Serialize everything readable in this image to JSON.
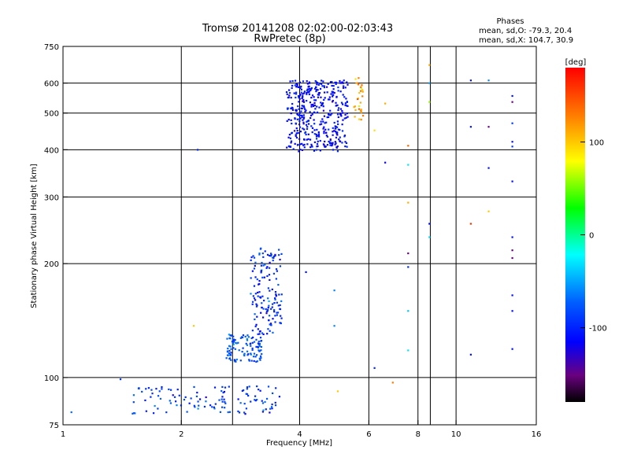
{
  "chart_data": {
    "type": "scatter",
    "title": "Tromsø 20141208 02:02:00-02:03:43",
    "subtitle": "RwPretec (8p)",
    "xlabel": "Frequency [MHz]",
    "ylabel": "Stationary phase Virtual Height [km]",
    "x_scale": "log",
    "y_scale": "log",
    "xlim": [
      1,
      16
    ],
    "ylim": [
      75,
      750
    ],
    "x_ticks": [
      1,
      2,
      4,
      6,
      8,
      10,
      16
    ],
    "y_ticks": [
      75,
      100,
      200,
      300,
      400,
      500,
      600,
      750
    ],
    "grid": true,
    "legend": {
      "title": "Phases",
      "lines": [
        "mean, sd,O: -79.3, 20.4",
        "mean, sd,X: 104.7, 30.9"
      ],
      "placement": "top-right"
    },
    "colorbar": {
      "label": "[deg]",
      "range": [
        -180,
        180
      ],
      "ticks": [
        100,
        0,
        -100
      ]
    },
    "clusters": [
      {
        "name": "",
        "x_range": [
          1.5,
          3.6
        ],
        "y_range": [
          80,
          95
        ],
        "count": 120,
        "phase_mean": -90,
        "phase_sd": 25
      },
      {
        "name": "",
        "x_range": [
          2.6,
          3.2
        ],
        "y_range": [
          110,
          130
        ],
        "count": 110,
        "phase_mean": -80,
        "phase_sd": 20
      },
      {
        "name": "",
        "x_range": [
          3.0,
          3.6
        ],
        "y_range": [
          130,
          220
        ],
        "count": 150,
        "phase_mean": -95,
        "phase_sd": 25
      },
      {
        "name": "",
        "x_range": [
          3.7,
          5.3
        ],
        "y_range": [
          395,
          610
        ],
        "count": 420,
        "phase_mean": -110,
        "phase_sd": 15
      },
      {
        "name": "",
        "x_range": [
          5.5,
          5.8
        ],
        "y_range": [
          480,
          620
        ],
        "count": 30,
        "phase_mean": 110,
        "phase_sd": 30
      }
    ],
    "points": [
      {
        "x": 1.05,
        "y": 81,
        "phase": -70
      },
      {
        "x": 1.4,
        "y": 99,
        "phase": -90
      },
      {
        "x": 2.2,
        "y": 400,
        "phase": -100
      },
      {
        "x": 4.15,
        "y": 190,
        "phase": -110
      },
      {
        "x": 4.9,
        "y": 170,
        "phase": -60
      },
      {
        "x": 4.9,
        "y": 137,
        "phase": -60
      },
      {
        "x": 2.15,
        "y": 137,
        "phase": 100
      },
      {
        "x": 5.0,
        "y": 92,
        "phase": 100
      },
      {
        "x": 6.2,
        "y": 450,
        "phase": 90
      },
      {
        "x": 6.2,
        "y": 106,
        "phase": -100
      },
      {
        "x": 6.6,
        "y": 530,
        "phase": 110
      },
      {
        "x": 6.6,
        "y": 370,
        "phase": -120
      },
      {
        "x": 6.9,
        "y": 97,
        "phase": 130
      },
      {
        "x": 7.55,
        "y": 410,
        "phase": 140
      },
      {
        "x": 7.55,
        "y": 365,
        "phase": -30
      },
      {
        "x": 7.55,
        "y": 290,
        "phase": 110
      },
      {
        "x": 7.55,
        "y": 213,
        "phase": -150
      },
      {
        "x": 7.55,
        "y": 196,
        "phase": -100
      },
      {
        "x": 7.55,
        "y": 150,
        "phase": -40
      },
      {
        "x": 7.55,
        "y": 118,
        "phase": -30
      },
      {
        "x": 8.55,
        "y": 670,
        "phase": 110
      },
      {
        "x": 8.55,
        "y": 600,
        "phase": -50
      },
      {
        "x": 8.55,
        "y": 535,
        "phase": 60
      },
      {
        "x": 8.55,
        "y": 255,
        "phase": -110
      },
      {
        "x": 8.55,
        "y": 235,
        "phase": -30
      },
      {
        "x": 10.9,
        "y": 610,
        "phase": -110
      },
      {
        "x": 10.9,
        "y": 460,
        "phase": -110
      },
      {
        "x": 10.9,
        "y": 255,
        "phase": 160
      },
      {
        "x": 10.9,
        "y": 115,
        "phase": -110
      },
      {
        "x": 12.1,
        "y": 610,
        "phase": -60
      },
      {
        "x": 12.1,
        "y": 460,
        "phase": -150
      },
      {
        "x": 12.1,
        "y": 358,
        "phase": -110
      },
      {
        "x": 12.1,
        "y": 275,
        "phase": 100
      },
      {
        "x": 13.9,
        "y": 555,
        "phase": -110
      },
      {
        "x": 13.9,
        "y": 535,
        "phase": -150
      },
      {
        "x": 13.9,
        "y": 470,
        "phase": -90
      },
      {
        "x": 13.9,
        "y": 420,
        "phase": -110
      },
      {
        "x": 13.9,
        "y": 408,
        "phase": -90
      },
      {
        "x": 13.9,
        "y": 330,
        "phase": -110
      },
      {
        "x": 13.9,
        "y": 235,
        "phase": -110
      },
      {
        "x": 13.9,
        "y": 217,
        "phase": -150
      },
      {
        "x": 13.9,
        "y": 207,
        "phase": -150
      },
      {
        "x": 13.9,
        "y": 165,
        "phase": -110
      },
      {
        "x": 13.9,
        "y": 150,
        "phase": -110
      },
      {
        "x": 13.9,
        "y": 119,
        "phase": -110
      }
    ]
  }
}
